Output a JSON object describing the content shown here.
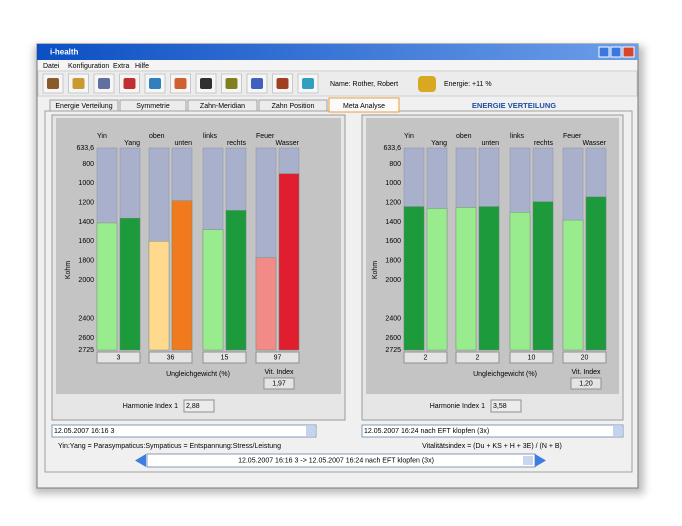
{
  "window": {
    "title": "i-health"
  },
  "menu": [
    "Datei",
    "Konfiguration",
    "Extra",
    "Hilfe"
  ],
  "toolbar": {
    "name": "Name: Rother, Robert",
    "energy": "Energie: +11 %"
  },
  "tabs": [
    {
      "label": "Energie Verteilung",
      "active": false
    },
    {
      "label": "Symmetrie",
      "active": false
    },
    {
      "label": "Zahn-Meridian",
      "active": false
    },
    {
      "label": "Zahn Position",
      "active": false
    },
    {
      "label": "Meta Analyse",
      "active": true
    }
  ],
  "section_title": "ENERGIE VERTEILUNG",
  "panels": [
    {
      "axis_label": "Kohm",
      "ylim": [
        633.6,
        2725
      ],
      "yticks": [
        {
          "value": 633.6,
          "label": "633,6"
        },
        800,
        1000,
        1200,
        1400,
        1600,
        1800,
        2000,
        2400,
        2600,
        2725
      ],
      "groups": [
        {
          "labels": [
            "Yin",
            "Yang"
          ],
          "values": [
            1410,
            1360
          ],
          "colors": [
            "#98ec8e",
            "#1c9a3c"
          ],
          "imbalance": 3
        },
        {
          "labels": [
            "oben",
            "unten"
          ],
          "values": [
            1600,
            1180
          ],
          "colors": [
            "#ffd98e",
            "#f27a1e"
          ],
          "imbalance": 36
        },
        {
          "labels": [
            "links",
            "rechts"
          ],
          "values": [
            1480,
            1280
          ],
          "colors": [
            "#98ec8e",
            "#1c9a3c"
          ],
          "imbalance": 15
        },
        {
          "labels": [
            "Feuer",
            "Wasser"
          ],
          "values": [
            1770,
            900
          ],
          "colors": [
            "#f28a88",
            "#e01e30"
          ],
          "imbalance": 97
        }
      ],
      "imbalance_label": "Ungleichgewicht (%)",
      "vit_label": "Vit. Index",
      "vit_value": "1,97",
      "harmony_label": "Harmonie Index 1",
      "harmony_value": "2,88",
      "dropdown": "12.05.2007 16:16  3"
    },
    {
      "axis_label": "Kohm",
      "ylim": [
        633.6,
        2725
      ],
      "yticks": [
        {
          "value": 633.6,
          "label": "633,6"
        },
        800,
        1000,
        1200,
        1400,
        1600,
        1800,
        2000,
        2400,
        2600,
        2725
      ],
      "groups": [
        {
          "labels": [
            "Yin",
            "Yang"
          ],
          "values": [
            1240,
            1260
          ],
          "colors": [
            "#1c9a3c",
            "#98ec8e"
          ],
          "imbalance": 2
        },
        {
          "labels": [
            "oben",
            "unten"
          ],
          "values": [
            1250,
            1240
          ],
          "colors": [
            "#98ec8e",
            "#1c9a3c"
          ],
          "imbalance": 2
        },
        {
          "labels": [
            "links",
            "rechts"
          ],
          "values": [
            1300,
            1190
          ],
          "colors": [
            "#98ec8e",
            "#1c9a3c"
          ],
          "imbalance": 10
        },
        {
          "labels": [
            "Feuer",
            "Wasser"
          ],
          "values": [
            1380,
            1140
          ],
          "colors": [
            "#98ec8e",
            "#1c9a3c"
          ],
          "imbalance": 20
        }
      ],
      "imbalance_label": "Ungleichgewicht (%)",
      "vit_label": "Vit. Index",
      "vit_value": "1,20",
      "harmony_label": "Harmonie Index 1",
      "harmony_value": "3,58",
      "dropdown": "12.05.2007 16:24  nach EFT klopfen (3x)"
    }
  ],
  "footer": {
    "note": "Yin:Yang = Parasympaticus:Sympaticus = Entspannung:Stress/Leistung",
    "formula": "Vitalitätsindex = (Du + KS + H + 3E) / (N + B)",
    "nav": "12.05.2007 16:16  3 -> 12.05.2007 16:24  nach EFT klopfen (3x)"
  }
}
